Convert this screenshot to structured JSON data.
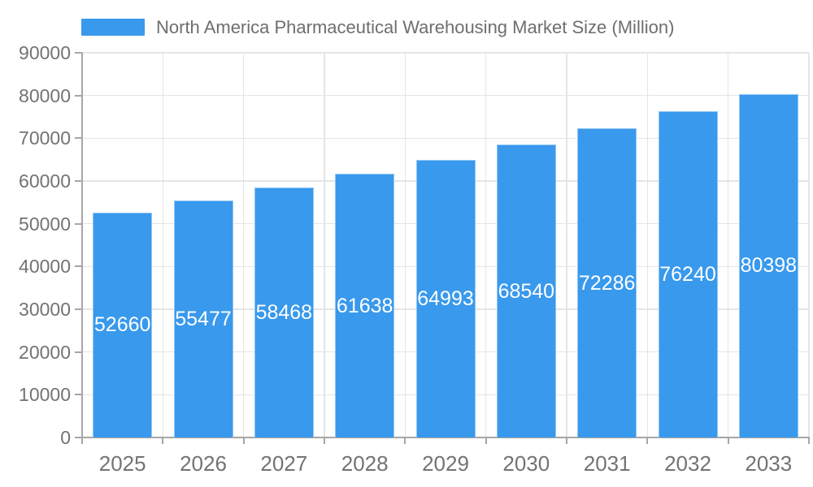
{
  "legend": {
    "label": "North America Pharmaceutical Warehousing Market Size (Million)"
  },
  "chart_data": {
    "type": "bar",
    "title": "North America Pharmaceutical Warehousing Market Size (Million)",
    "categories": [
      "2025",
      "2026",
      "2027",
      "2028",
      "2029",
      "2030",
      "2031",
      "2032",
      "2033"
    ],
    "values": [
      52660,
      55477,
      58468,
      61638,
      64993,
      68540,
      72286,
      76240,
      80398
    ],
    "xlabel": "",
    "ylabel": "",
    "ylim": [
      0,
      90000
    ],
    "ytick_step": 10000,
    "yticks": [
      0,
      10000,
      20000,
      30000,
      40000,
      50000,
      60000,
      70000,
      80000,
      90000
    ],
    "grid": true,
    "legend_position": "top-left",
    "bar_value_labels_inside": true,
    "colors": {
      "bar": "#3999EC",
      "bar_label": "#FFFFFF",
      "axis_text": "#737373",
      "title_text": "#6E6E6E",
      "grid_line": "#E5E5E5",
      "axis_line": "#A6A6A6"
    }
  }
}
